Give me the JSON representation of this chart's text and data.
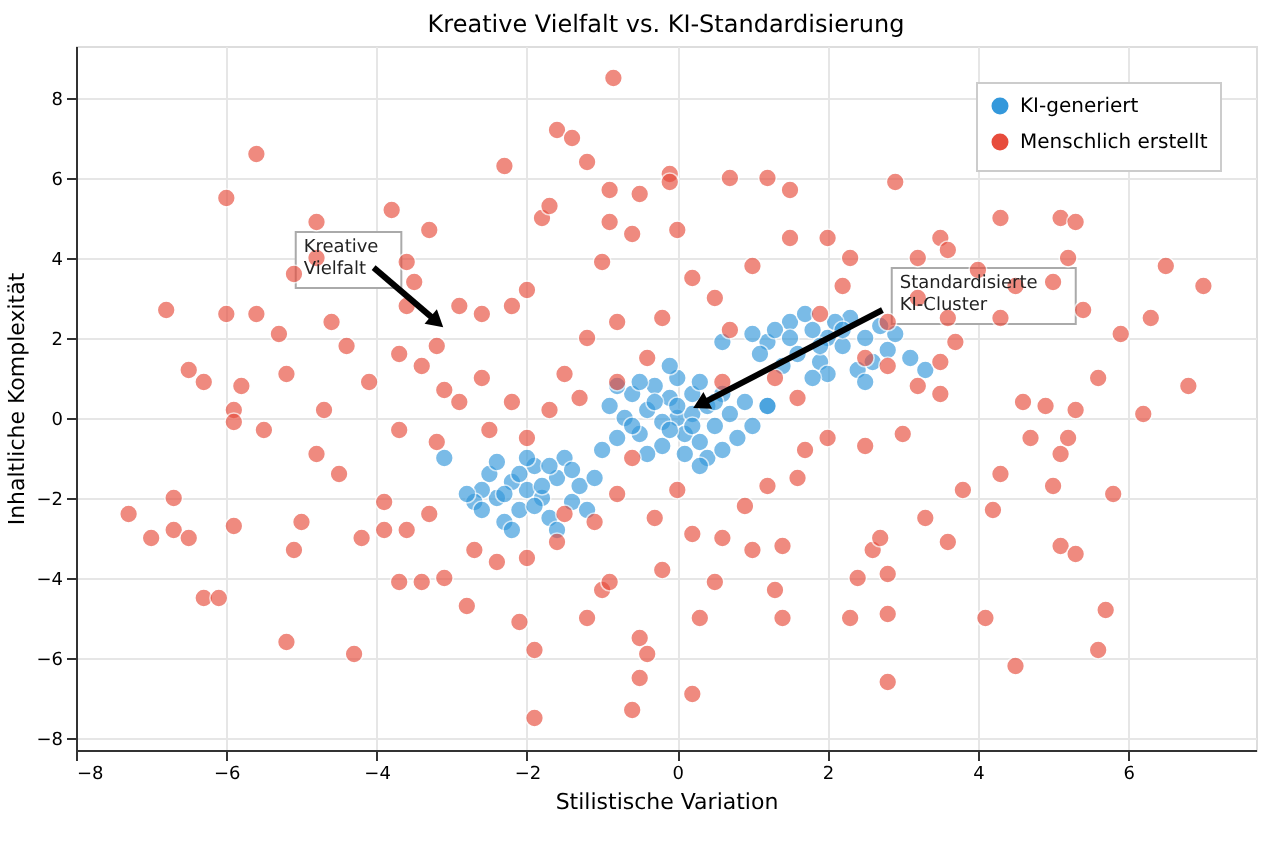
{
  "chart_data": {
    "type": "scatter",
    "title": "Kreative Vielfalt vs. KI-Standardisierung",
    "xlabel": "Stilistische Variation",
    "ylabel": "Inhaltliche Komplexität",
    "xlim": [
      -8,
      7.7
    ],
    "ylim": [
      -8.3,
      9.3
    ],
    "xticks": [
      -8,
      -6,
      -4,
      -2,
      0,
      2,
      4,
      6
    ],
    "yticks": [
      -8,
      -6,
      -4,
      -2,
      0,
      2,
      4,
      6,
      8
    ],
    "grid": true,
    "legend": "top right",
    "marker": "circle",
    "annotations": [
      {
        "text": "Kreative\nVielfalt",
        "x": -3.07,
        "y": 2.2
      },
      {
        "text": "Standardisierte\nKI-Cluster",
        "x": 0.16,
        "y": 0.2
      }
    ],
    "series": [
      {
        "name": "KI-generiert",
        "color": "#3498db",
        "x": [
          0,
          0.2,
          -0.2,
          0.4,
          -0.4,
          0.1,
          -0.1,
          0.5,
          -0.5,
          0.3,
          -0.3,
          0.7,
          -0.7,
          0.0,
          0.1,
          -0.6,
          0.6,
          -0.8,
          0.8,
          -0.2,
          0.2,
          -0.4,
          0.4,
          -0.9,
          0.9,
          0.0,
          -0.1,
          0.3,
          -0.6,
          0.5,
          -0.3,
          0.2,
          -0.5,
          0.6,
          -0.1,
          0.3,
          -1.0,
          1.0,
          1.2,
          -0.8,
          -2,
          -2.2,
          -1.8,
          -2.4,
          -1.6,
          -2.1,
          -1.9,
          -2.5,
          -1.4,
          -2.3,
          -1.7,
          -2.6,
          -1.3,
          -2.0,
          -2.2,
          -1.5,
          -2.7,
          -1.2,
          -1.8,
          -2.1,
          -1.9,
          -2.4,
          -1.6,
          -1.1,
          -2.8,
          -3.1,
          -2.6,
          -1.4,
          -2.3,
          -1.7,
          2.0,
          1.8,
          2.2,
          1.5,
          2.5,
          1.2,
          2.8,
          1.6,
          2.3,
          1.9,
          2.6,
          1.3,
          2.1,
          1.7,
          2.9,
          1.1,
          2.4,
          1.4,
          3.1,
          2.0,
          1.5,
          2.7,
          1.9,
          2.2,
          1.0,
          0.6,
          3.3,
          2.5,
          1.2,
          1.8
        ],
        "values": [
          0,
          0.1,
          -0.1,
          0.3,
          0.2,
          -0.4,
          0.5,
          -0.2,
          -0.4,
          -0.6,
          0.8,
          0.1,
          0.0,
          1.0,
          -0.9,
          0.6,
          0.6,
          -0.5,
          -0.5,
          -0.7,
          0.6,
          -0.9,
          -1.0,
          0.3,
          0.4,
          0.3,
          -0.3,
          0.9,
          -0.2,
          0.4,
          0.4,
          -0.2,
          0.9,
          -0.8,
          1.3,
          -1.2,
          -0.8,
          -0.2,
          0.3,
          0.8,
          -1.8,
          -1.6,
          -2.0,
          -2.0,
          -1.5,
          -2.3,
          -1.2,
          -1.4,
          -2.1,
          -2.6,
          -2.5,
          -1.8,
          -1.7,
          -1.0,
          -2.8,
          -1.0,
          -2.1,
          -2.3,
          -1.7,
          -1.4,
          -2.2,
          -1.1,
          -2.8,
          -1.5,
          -1.9,
          -1.0,
          -2.3,
          -1.3,
          -1.9,
          -1.2,
          2.0,
          2.2,
          1.8,
          2.4,
          2.0,
          1.9,
          1.7,
          1.6,
          2.5,
          1.4,
          1.4,
          2.2,
          2.4,
          2.6,
          2.1,
          1.6,
          1.2,
          1.3,
          1.5,
          1.1,
          2.0,
          2.3,
          1.8,
          2.2,
          2.1,
          1.9,
          1.2,
          0.9,
          0.3,
          1.0
        ]
      },
      {
        "name": "Menschlich erstellt",
        "color": "#e74c3c",
        "x": [
          -0.85,
          -1.6,
          -1.4,
          -0.1,
          -0.1,
          -0.5,
          -0.9,
          -1.2,
          -2.3,
          -1.8,
          -1.7,
          -0.9,
          -0.6,
          0.0,
          0.7,
          1.2,
          1.5,
          2.9,
          1.5,
          2.0,
          2.3,
          3.2,
          3.5,
          3.6,
          4.3,
          5.1,
          5.3,
          5.2,
          5.0,
          6.5,
          7.0,
          6.3,
          5.4,
          5.9,
          4.0,
          4.3,
          4.5,
          3.2,
          3.6,
          2.8,
          -6.0,
          -5.6,
          -3.8,
          -3.3,
          -4.8,
          -5.1,
          -4.8,
          -3.6,
          -3.5,
          -6.8,
          -6.0,
          -5.6,
          -5.3,
          -4.6,
          -3.6,
          -3.2,
          -2.9,
          -2.6,
          -2.2,
          -2.0,
          -1.2,
          -0.8,
          -0.2,
          0.5,
          1.0,
          0.7,
          -6.5,
          -6.3,
          -5.8,
          -5.9,
          -5.2,
          -4.4,
          -4.1,
          -3.7,
          -3.4,
          -3.1,
          -2.9,
          -2.6,
          -4.7,
          -5.9,
          -4.8,
          -3.7,
          -3.2,
          -3.9,
          -4.5,
          -5.0,
          -5.1,
          -4.2,
          -3.9,
          -3.6,
          -3.3,
          -3.7,
          -3.4,
          -3.1,
          -2.7,
          -2.4,
          -2.0,
          -1.6,
          -2.8,
          -2.1,
          -1.9,
          -1.9,
          -1.0,
          -1.2,
          -0.9,
          -0.5,
          -0.4,
          -0.5,
          -0.6,
          -5.2,
          -4.3,
          -7.3,
          -7.0,
          -6.7,
          -6.7,
          -6.5,
          -6.3,
          -6.1,
          -5.9,
          -5.5,
          0.2,
          0.5,
          0.3,
          0.6,
          1.0,
          1.4,
          1.3,
          1.4,
          2.4,
          2.8,
          2.8,
          2.8,
          2.3,
          2.6,
          2.7,
          3.3,
          3.6,
          3.8,
          4.3,
          4.2,
          4.1,
          4.5,
          5.1,
          5.3,
          5.7,
          5.6,
          5.8,
          5.1,
          5.0,
          5.2,
          4.6,
          4.9,
          5.3,
          6.2,
          6.8,
          5.6,
          4.7,
          3.5,
          3.2,
          2.8,
          3.0,
          2.5,
          1.7,
          1.6,
          1.2,
          0.9,
          2.0,
          1.6,
          1.3,
          0.6,
          -0.6,
          -0.8,
          -1.1,
          -1.5,
          -0.3,
          -0.2,
          0.0,
          0.2,
          -1.3,
          -1.7,
          -2.2,
          -2.5,
          -2.0,
          -1.5,
          -0.8,
          -0.4,
          1.9,
          2.5,
          3.7,
          3.5,
          2.2,
          0.2,
          -1.0
        ],
        "values": [
          8.5,
          7.2,
          7.0,
          6.1,
          5.9,
          5.6,
          5.7,
          6.4,
          6.3,
          5.0,
          5.3,
          4.9,
          4.6,
          4.7,
          6.0,
          6.0,
          5.7,
          5.9,
          4.5,
          4.5,
          4.0,
          4.0,
          4.5,
          4.2,
          5.0,
          5.0,
          4.9,
          4.0,
          3.4,
          3.8,
          3.3,
          2.5,
          2.7,
          2.1,
          3.7,
          2.5,
          3.3,
          3.0,
          2.5,
          2.4,
          5.5,
          6.6,
          5.2,
          4.7,
          4.9,
          3.6,
          4.0,
          3.9,
          3.4,
          2.7,
          2.6,
          2.6,
          2.1,
          2.4,
          2.8,
          1.8,
          2.8,
          2.6,
          2.8,
          3.2,
          2.0,
          2.4,
          2.5,
          3.0,
          3.8,
          2.2,
          1.2,
          0.9,
          0.8,
          0.2,
          1.1,
          1.8,
          0.9,
          1.6,
          1.3,
          0.7,
          0.4,
          1.0,
          0.2,
          -0.1,
          -0.9,
          -0.3,
          -0.6,
          -2.1,
          -1.4,
          -2.6,
          -3.3,
          -3.0,
          -2.8,
          -2.8,
          -2.4,
          -4.1,
          -4.1,
          -4.0,
          -3.3,
          -3.6,
          -3.5,
          -3.1,
          -4.7,
          -5.1,
          -5.8,
          -7.5,
          -4.3,
          -5.0,
          -4.1,
          -5.5,
          -5.9,
          -6.5,
          -7.3,
          -5.6,
          -5.9,
          -2.4,
          -3.0,
          -2.0,
          -2.8,
          -3.0,
          -4.5,
          -4.5,
          -2.7,
          -0.3,
          -6.9,
          -4.1,
          -5.0,
          -3.0,
          -3.3,
          -3.2,
          -4.3,
          -5.0,
          -4.0,
          -3.9,
          -4.9,
          -6.6,
          -5.0,
          -3.3,
          -3.0,
          -2.5,
          -3.1,
          -1.8,
          -1.4,
          -2.3,
          -5.0,
          -6.2,
          -3.2,
          -3.4,
          -4.8,
          -5.8,
          -1.9,
          -0.9,
          -1.7,
          -0.5,
          0.4,
          0.3,
          0.2,
          0.1,
          0.8,
          1.0,
          -0.5,
          0.6,
          0.8,
          1.3,
          -0.4,
          -0.7,
          -0.8,
          -1.5,
          -1.7,
          -2.2,
          -0.5,
          0.5,
          1.0,
          0.9,
          -1.0,
          -1.9,
          -2.6,
          -2.4,
          -2.5,
          -3.8,
          -1.8,
          -2.9,
          0.5,
          0.2,
          0.4,
          -0.3,
          -0.5,
          1.1,
          0.9,
          1.5,
          2.6,
          1.5,
          1.9,
          1.4,
          3.3,
          3.5,
          3.9
        ]
      }
    ]
  }
}
